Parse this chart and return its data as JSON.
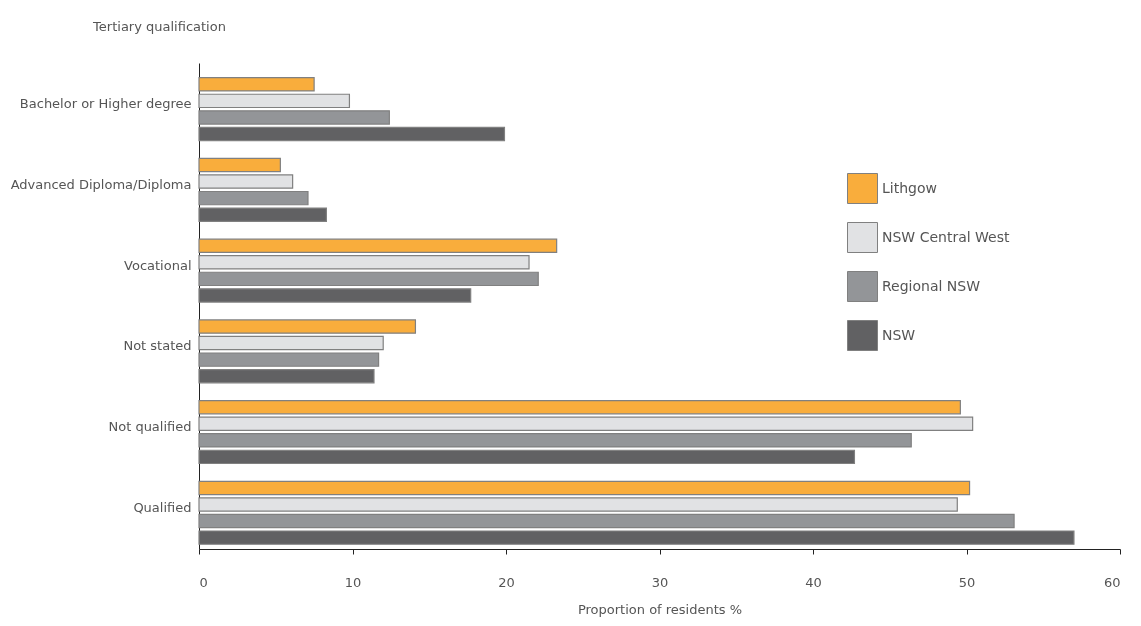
{
  "chart_data": {
    "type": "bar",
    "orientation": "horizontal",
    "ylabel": "Tertiary qualification",
    "xlabel": "Proportion of residents %",
    "categories": [
      "Bachelor or Higher degree",
      "Advanced Diploma/Diploma",
      "Vocational",
      "Not stated",
      "Not qualified",
      "Qualified"
    ],
    "series": [
      {
        "name": "Lithgow",
        "color": "#f9ad3c",
        "values": [
          7.5,
          5.3,
          23.3,
          14.1,
          49.6,
          50.2
        ]
      },
      {
        "name": "NSW Central West",
        "color": "#e1e2e4",
        "values": [
          9.8,
          6.1,
          21.5,
          12.0,
          50.4,
          49.4
        ]
      },
      {
        "name": "Regional NSW",
        "color": "#939598",
        "values": [
          12.4,
          7.1,
          22.1,
          11.7,
          46.4,
          53.1
        ]
      },
      {
        "name": "NSW",
        "color": "#616163",
        "values": [
          19.9,
          8.3,
          17.7,
          11.4,
          42.7,
          57.0
        ]
      }
    ],
    "xlim": [
      0,
      60
    ],
    "xticks": [
      0,
      10,
      20,
      30,
      40,
      50,
      60
    ],
    "grid": false,
    "legend": "top right"
  }
}
